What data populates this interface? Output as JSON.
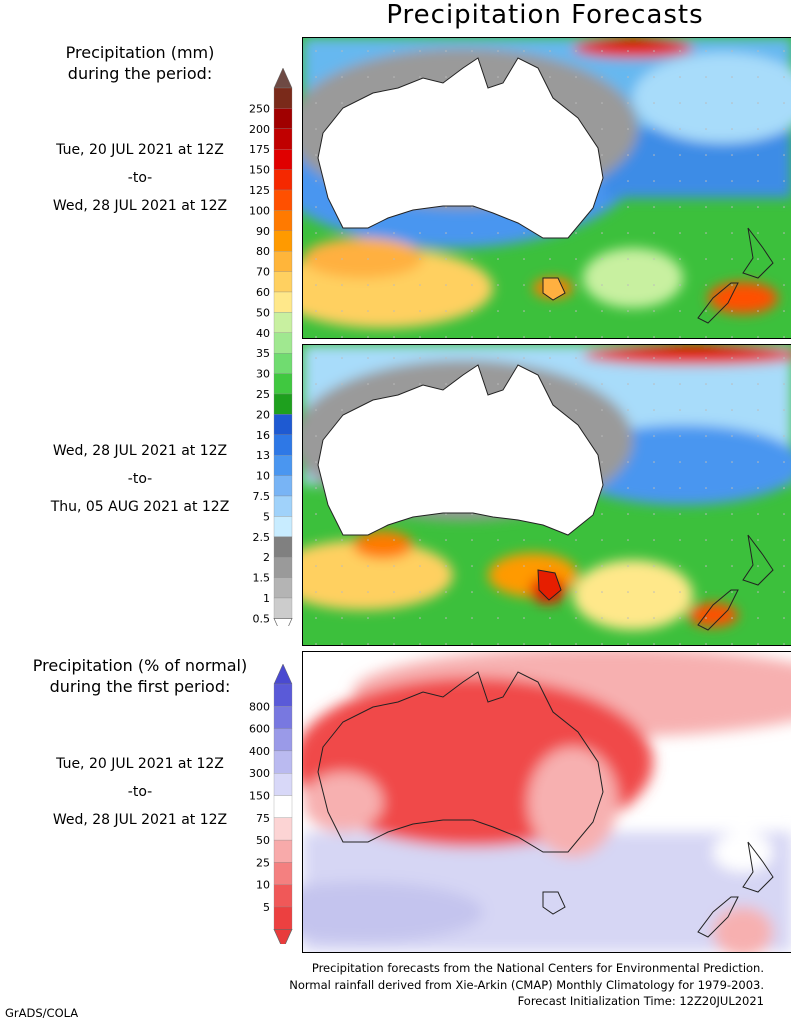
{
  "title": "Precipitation Forecasts",
  "panel1_header": [
    "Precipitation (mm)",
    "during the period:"
  ],
  "panel1_period": [
    "Tue, 20 JUL 2021 at 12Z",
    "-to-",
    "Wed, 28 JUL 2021 at 12Z"
  ],
  "panel2_period": [
    "Wed, 28 JUL 2021 at 12Z",
    "-to-",
    "Thu, 05 AUG 2021 at 12Z"
  ],
  "panel3_header": [
    "Precipitation (% of normal)",
    "during the first period:"
  ],
  "panel3_period": [
    "Tue, 20 JUL 2021 at 12Z",
    "-to-",
    "Wed, 28 JUL 2021 at 12Z"
  ],
  "footer": [
    "Precipitation forecasts from the National Centers for Environmental Prediction.",
    "Normal rainfall derived from Xie-Arkin (CMAP) Monthly Climatology for 1979-2003.",
    "Forecast Initialization Time: 12Z20JUL2021"
  ],
  "credit": "GrADS/COLA",
  "chart_data": [
    {
      "type": "heatmap",
      "variable": "precipitation_mm",
      "colorbar": {
        "labels": [
          "250",
          "200",
          "175",
          "150",
          "125",
          "100",
          "90",
          "80",
          "70",
          "60",
          "50",
          "40",
          "35",
          "30",
          "25",
          "20",
          "16",
          "13",
          "10",
          "7.5",
          "5",
          "2.5",
          "2",
          "1.5",
          "1",
          "0.5"
        ],
        "colors": [
          "#7a2a1a",
          "#a00000",
          "#c00000",
          "#e00000",
          "#f52800",
          "#ff5000",
          "#ff7a00",
          "#ff9a00",
          "#ffb53a",
          "#ffd060",
          "#ffe88a",
          "#c8f0a0",
          "#a0e890",
          "#70dc70",
          "#40c840",
          "#1ea01e",
          "#1e5ad2",
          "#2e78e6",
          "#4a96f0",
          "#78b4f5",
          "#a0d2fa",
          "#c8ecff",
          "#808080",
          "#9a9a9a",
          "#b4b4b4",
          "#cccccc"
        ],
        "top_arrow_color": "#6e4a44",
        "bottom_arrow_color": "#ffffff"
      }
    },
    {
      "type": "heatmap",
      "variable": "precipitation_percent_of_normal",
      "colorbar": {
        "labels": [
          "800",
          "600",
          "400",
          "300",
          "150",
          "75",
          "50",
          "25",
          "10",
          "5"
        ],
        "colors": [
          "#5a5ad8",
          "#7878e0",
          "#9a9ae8",
          "#babaf0",
          "#d8d8f8",
          "#ffffff",
          "#fcd4d4",
          "#f8aaaa",
          "#f48080",
          "#f05858",
          "#ec4040"
        ],
        "top_arrow_color": "#4a4ad0",
        "bottom_arrow_color": "#e83c3c"
      }
    }
  ],
  "colors": {
    "land_dry": "#ffffff",
    "ocean_green": "#3cc03c",
    "ocean_blue": "#3c8ce6",
    "ocean_lightblue": "#a8dcfa",
    "gray_band": "#9a9a9a",
    "wet_orange": "#ffb040",
    "wet_red": "#e61e00",
    "pct_red": "#f04848",
    "pct_pink": "#f7b0b0",
    "pct_lavender": "#d6d6f4"
  }
}
